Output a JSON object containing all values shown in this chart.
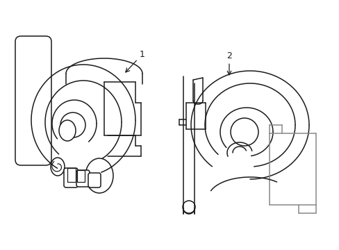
{
  "bg_color": "#ffffff",
  "line_color": "#1a1a1a",
  "gray_color": "#888888",
  "label1": "1",
  "label2": "2",
  "lw": 1.1
}
